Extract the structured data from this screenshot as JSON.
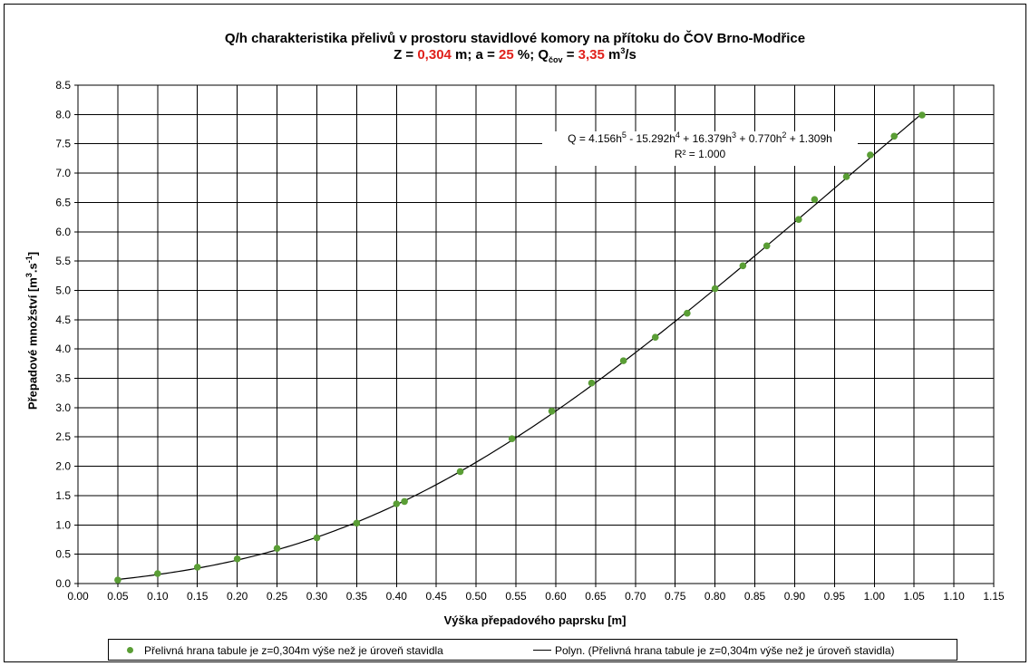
{
  "title": {
    "line1": "Q/h charakteristika přelivů v prostoru stavidlové komory na přítoku do ČOV Brno-Modřice",
    "z_label": "Z = ",
    "z_value": "0,304",
    "z_unit": " m; a = ",
    "a_value": "25",
    "a_unit": " %; Q",
    "q_sub": "čov",
    "q_eq": " = ",
    "q_value": "3,35",
    "q_unit": " m",
    "q_unit_sup": "3",
    "q_unit_end": "/s"
  },
  "equation": {
    "q_prefix": "Q = 4.156h",
    "p5": "5",
    "t4": " - 15.292h",
    "p4": "4",
    "t3": " + 16.379h",
    "p3": "3",
    "t2": " + 0.770h",
    "p2": "2",
    "t1": " + 1.309h",
    "r2": "R² = 1.000"
  },
  "legend": {
    "points_label": "Přelivná hrana tabule je z=0,304m výše než je úroveň stavidla",
    "line_label": "Polyn. (Přelivná hrana tabule je z=0,304m výše než je úroveň stavidla)"
  },
  "colors": {
    "points": "#5a9e35",
    "highlight": "#e0211c",
    "trend": "#000000",
    "grid": "#000000"
  },
  "chart_data": {
    "type": "scatter",
    "xlabel": "Výška přepadového paprsku [m]",
    "ylabel": "Přepadové množství [m",
    "ylabel_sup1": "3",
    "ylabel_mid": ".s",
    "ylabel_sup2": "-1",
    "ylabel_end": "]",
    "xlim": [
      0.0,
      1.15
    ],
    "ylim": [
      0.0,
      8.5
    ],
    "x_tick_step": 0.05,
    "y_tick_step": 0.5,
    "x_ticks": [
      "0.00",
      "0.05",
      "0.10",
      "0.15",
      "0.20",
      "0.25",
      "0.30",
      "0.35",
      "0.40",
      "0.45",
      "0.50",
      "0.55",
      "0.60",
      "0.65",
      "0.70",
      "0.75",
      "0.80",
      "0.85",
      "0.90",
      "0.95",
      "1.00",
      "1.05",
      "1.10",
      "1.15"
    ],
    "y_ticks": [
      "0.0",
      "0.5",
      "1.0",
      "1.5",
      "2.0",
      "2.5",
      "3.0",
      "3.5",
      "4.0",
      "4.5",
      "5.0",
      "5.5",
      "6.0",
      "6.5",
      "7.0",
      "7.5",
      "8.0",
      "8.5"
    ],
    "grid": true,
    "legend_position": "bottom",
    "series": [
      {
        "name": "Přelivná hrana tabule je z=0,304m výše než je úroveň stavidla",
        "kind": "points",
        "x": [
          0.05,
          0.1,
          0.15,
          0.2,
          0.25,
          0.3,
          0.35,
          0.4,
          0.41,
          0.48,
          0.545,
          0.595,
          0.645,
          0.685,
          0.725,
          0.765,
          0.8,
          0.835,
          0.865,
          0.905,
          0.925,
          0.965,
          0.995,
          1.025,
          1.06
        ],
        "y": [
          0.06,
          0.17,
          0.28,
          0.42,
          0.6,
          0.78,
          1.03,
          1.36,
          1.4,
          1.91,
          2.47,
          2.94,
          3.42,
          3.8,
          4.2,
          4.61,
          5.03,
          5.42,
          5.76,
          6.21,
          6.55,
          6.94,
          7.31,
          7.63,
          7.99
        ]
      },
      {
        "name": "Polyn. (Přelivná hrana tabule je z=0,304m výše než je úroveň stavidla)",
        "kind": "trendline",
        "coefficients": [
          4.156,
          -15.292,
          16.379,
          0.77,
          1.309,
          0
        ],
        "x_range": [
          0.05,
          1.06
        ]
      }
    ]
  }
}
